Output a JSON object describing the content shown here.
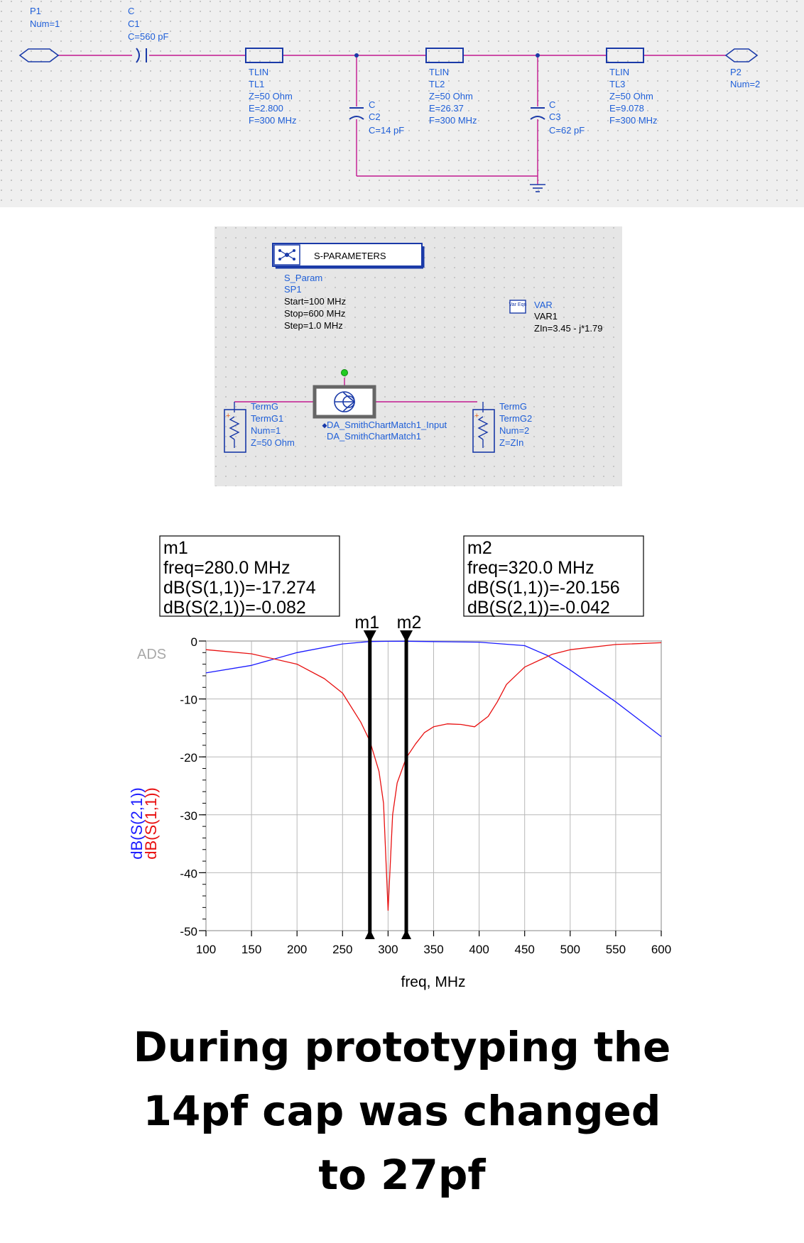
{
  "schematic": {
    "p1": {
      "type": "P1",
      "num": "Num=1"
    },
    "p2": {
      "type": "P2",
      "num": "Num=2"
    },
    "c1": {
      "type": "C",
      "name": "C1",
      "value": "C=560 pF"
    },
    "c2": {
      "type": "C",
      "name": "C2",
      "value": "C=14 pF"
    },
    "c3": {
      "type": "C",
      "name": "C3",
      "value": "C=62 pF"
    },
    "tl1": {
      "type": "TLIN",
      "name": "TL1",
      "z": "Z=50 Ohm",
      "e": "E=2.800",
      "f": "F=300 MHz"
    },
    "tl2": {
      "type": "TLIN",
      "name": "TL2",
      "z": "Z=50 Ohm",
      "e": "E=26.37",
      "f": "F=300 MHz"
    },
    "tl3": {
      "type": "TLIN",
      "name": "TL3",
      "z": "Z=50 Ohm",
      "e": "E=9.078",
      "f": "F=300 MHz"
    }
  },
  "sim": {
    "title": "S-PARAMETERS",
    "type": "S_Param",
    "name": "SP1",
    "start": "Start=100 MHz",
    "stop": "Stop=600 MHz",
    "step": "Step=1.0 MHz",
    "var_icon": "Var Eqn",
    "var_type": "VAR",
    "var_name": "VAR1",
    "var_eq": "ZIn=3.45 - j*1.79",
    "term1": {
      "type": "TermG",
      "name": "TermG1",
      "num": "Num=1",
      "z": "Z=50 Ohm"
    },
    "term2": {
      "type": "TermG",
      "name": "TermG2",
      "num": "Num=2",
      "z": "Z=ZIn"
    },
    "match": {
      "port_label": "DA_SmithChartMatch1_Input",
      "name": "DA_SmithChartMatch1"
    }
  },
  "markers": {
    "m1": {
      "name": "m1",
      "freq": "freq=280.0 MHz",
      "s11": "dB(S(1,1))=-17.274",
      "s21": "dB(S(2,1))=-0.082"
    },
    "m2": {
      "name": "m2",
      "freq": "freq=320.0 MHz",
      "s11": "dB(S(1,1))=-20.156",
      "s21": "dB(S(2,1))=-0.042"
    }
  },
  "chart_data": {
    "type": "line",
    "xlabel": "freq, MHz",
    "ylabels": [
      "dB(S(2,1))",
      "dB(S(1,1))"
    ],
    "xlim": [
      100,
      600
    ],
    "ylim": [
      -50,
      0
    ],
    "xticks": [
      100,
      150,
      200,
      250,
      300,
      350,
      400,
      450,
      500,
      550,
      600
    ],
    "yticks": [
      0,
      -10,
      -20,
      -30,
      -40,
      -50
    ],
    "grid": true,
    "watermark": "ADS",
    "marker_x": [
      280,
      320
    ],
    "series": [
      {
        "name": "dB(S(2,1))",
        "color": "#1a1aff",
        "x": [
          100,
          150,
          200,
          250,
          280,
          300,
          320,
          350,
          400,
          450,
          475,
          500,
          550,
          600
        ],
        "y": [
          -5.5,
          -4.2,
          -2.0,
          -0.5,
          -0.082,
          -0.05,
          -0.042,
          -0.1,
          -0.2,
          -0.8,
          -2.5,
          -5.0,
          -10.5,
          -16.5
        ]
      },
      {
        "name": "dB(S(1,1))",
        "color": "#e81010",
        "x": [
          100,
          150,
          200,
          230,
          250,
          270,
          280,
          290,
          295,
          300,
          305,
          310,
          320,
          330,
          340,
          350,
          365,
          380,
          395,
          410,
          420,
          430,
          450,
          480,
          500,
          550,
          600
        ],
        "y": [
          -1.5,
          -2.2,
          -4.0,
          -6.5,
          -9.0,
          -14.0,
          -17.274,
          -22.5,
          -28.0,
          -46.5,
          -30.0,
          -24.5,
          -20.156,
          -17.8,
          -15.8,
          -14.8,
          -14.3,
          -14.4,
          -14.8,
          -13.0,
          -10.5,
          -7.5,
          -4.5,
          -2.3,
          -1.5,
          -0.6,
          -0.3
        ]
      }
    ]
  },
  "caption": {
    "line1": "During prototyping the",
    "line2": "14pf cap was changed",
    "line3": "to 27pf"
  }
}
